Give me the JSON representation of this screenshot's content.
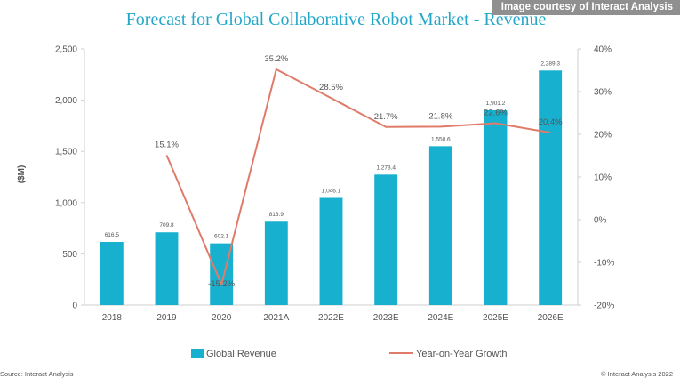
{
  "courtesy": "Image courtesy of Interact Analysis",
  "source": "Source: Interact Analysis",
  "copyright": "© Interact Analysis 2022",
  "colors": {
    "bar": "#17b1cf",
    "line": "#e07b6a",
    "title": "#26a7c9",
    "axis": "#cfcfcf",
    "text": "#555555"
  },
  "chart_data": {
    "type": "bar",
    "title": "Forecast for Global Collaborative Robot Market - Revenue",
    "xlabel": "",
    "ylabel": "($M)",
    "ylim": [
      0,
      2500
    ],
    "y_ticks": [
      0,
      500,
      1000,
      1500,
      2000,
      2500
    ],
    "y_tick_labels": [
      "0",
      "500",
      "1,000",
      "1,500",
      "2,000",
      "2,500"
    ],
    "y2lim": [
      -20,
      40
    ],
    "y2_ticks": [
      -20,
      -10,
      0,
      10,
      20,
      30,
      40
    ],
    "y2_tick_labels": [
      "-20%",
      "-10%",
      "0%",
      "10%",
      "20%",
      "30%",
      "40%"
    ],
    "categories": [
      "2018",
      "2019",
      "2020",
      "2021A",
      "2022E",
      "2023E",
      "2024E",
      "2025E",
      "2026E"
    ],
    "legend_position": "bottom",
    "grid": false,
    "series": [
      {
        "name": "Global Revenue",
        "type": "bar",
        "axis": "left",
        "values": [
          616.5,
          709.8,
          602.1,
          813.9,
          1046.1,
          1273.4,
          1550.6,
          1901.2,
          2289.3
        ],
        "labels": [
          "616.5",
          "709.8",
          "602.1",
          "813.9",
          "1,046.1",
          "1,273.4",
          "1,550.6",
          "1,901.2",
          "2,289.3"
        ]
      },
      {
        "name": "Year-on-Year Growth",
        "type": "line",
        "axis": "right",
        "values": [
          null,
          15.1,
          -15.2,
          35.2,
          28.5,
          21.7,
          21.8,
          22.6,
          20.4
        ],
        "labels": [
          "",
          "15.1%",
          "-15.2%",
          "35.2%",
          "28.5%",
          "21.7%",
          "21.8%",
          "22.6%",
          "20.4%"
        ]
      }
    ]
  }
}
